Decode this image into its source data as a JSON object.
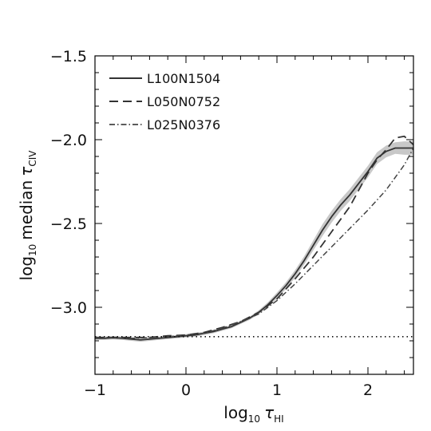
{
  "chart_data": {
    "type": "line",
    "xlabel": {
      "prefix": "log",
      "base": "10",
      "tau": "τ",
      "sub": "HI"
    },
    "ylabel": {
      "prefix": "log",
      "base": "10",
      "word": "median",
      "tau": "τ",
      "sub": "CIV"
    },
    "xlim": [
      -1,
      2.5
    ],
    "ylim": [
      -3.4,
      -1.5
    ],
    "xticks": [
      -1,
      0,
      1,
      2
    ],
    "xtick_labels": [
      "−1",
      "0",
      "1",
      "2"
    ],
    "yticks": [
      -3.0,
      -2.5,
      -2.0,
      -1.5
    ],
    "ytick_labels": [
      "−3.0",
      "−2.5",
      "−2.0",
      "−1.5"
    ],
    "grid": false,
    "legend_position": "top-left",
    "series": [
      {
        "name": "L100N1504",
        "style": "solid",
        "x": [
          -1.0,
          -0.9,
          -0.8,
          -0.7,
          -0.6,
          -0.5,
          -0.4,
          -0.3,
          -0.2,
          -0.1,
          0.0,
          0.1,
          0.2,
          0.3,
          0.4,
          0.5,
          0.6,
          0.7,
          0.8,
          0.9,
          1.0,
          1.1,
          1.2,
          1.3,
          1.4,
          1.5,
          1.6,
          1.7,
          1.8,
          1.9,
          2.0,
          2.1,
          2.2,
          2.3,
          2.4,
          2.5
        ],
        "y": [
          -3.185,
          -3.185,
          -3.182,
          -3.185,
          -3.19,
          -3.195,
          -3.19,
          -3.185,
          -3.18,
          -3.175,
          -3.17,
          -3.165,
          -3.155,
          -3.145,
          -3.13,
          -3.115,
          -3.09,
          -3.065,
          -3.03,
          -2.985,
          -2.93,
          -2.87,
          -2.8,
          -2.72,
          -2.63,
          -2.54,
          -2.46,
          -2.39,
          -2.33,
          -2.26,
          -2.19,
          -2.11,
          -2.07,
          -2.05,
          -2.05,
          -2.05
        ],
        "band_lower": [
          -3.195,
          -3.195,
          -3.192,
          -3.195,
          -3.2,
          -3.205,
          -3.2,
          -3.195,
          -3.19,
          -3.185,
          -3.18,
          -3.175,
          -3.165,
          -3.155,
          -3.14,
          -3.125,
          -3.1,
          -3.075,
          -3.042,
          -3.0,
          -2.948,
          -2.89,
          -2.823,
          -2.745,
          -2.66,
          -2.575,
          -2.495,
          -2.425,
          -2.365,
          -2.295,
          -2.225,
          -2.145,
          -2.105,
          -2.085,
          -2.09,
          -2.09
        ],
        "band_upper": [
          -3.175,
          -3.175,
          -3.172,
          -3.175,
          -3.18,
          -3.185,
          -3.18,
          -3.175,
          -3.17,
          -3.165,
          -3.16,
          -3.155,
          -3.145,
          -3.135,
          -3.12,
          -3.105,
          -3.08,
          -3.055,
          -3.018,
          -2.97,
          -2.912,
          -2.85,
          -2.777,
          -2.695,
          -2.6,
          -2.505,
          -2.425,
          -2.355,
          -2.295,
          -2.225,
          -2.155,
          -2.075,
          -2.035,
          -2.015,
          -2.01,
          -2.01
        ]
      },
      {
        "name": "L050N0752",
        "style": "dashed",
        "x": [
          -1.0,
          -0.8,
          -0.6,
          -0.4,
          -0.2,
          0.0,
          0.2,
          0.4,
          0.6,
          0.8,
          1.0,
          1.2,
          1.4,
          1.6,
          1.8,
          2.0,
          2.1,
          2.2,
          2.3,
          2.4,
          2.5
        ],
        "y": [
          -3.18,
          -3.18,
          -3.18,
          -3.18,
          -3.17,
          -3.165,
          -3.15,
          -3.12,
          -3.085,
          -3.03,
          -2.95,
          -2.83,
          -2.7,
          -2.55,
          -2.4,
          -2.2,
          -2.12,
          -2.06,
          -1.99,
          -1.98,
          -2.03
        ]
      },
      {
        "name": "L025N0376",
        "style": "dashdot",
        "x": [
          -1.0,
          -0.8,
          -0.6,
          -0.4,
          -0.2,
          0.0,
          0.2,
          0.4,
          0.6,
          0.8,
          1.0,
          1.2,
          1.4,
          1.6,
          1.8,
          2.0,
          2.2,
          2.4,
          2.5
        ],
        "y": [
          -3.18,
          -3.18,
          -3.185,
          -3.18,
          -3.175,
          -3.165,
          -3.155,
          -3.125,
          -3.085,
          -3.04,
          -2.96,
          -2.86,
          -2.75,
          -2.64,
          -2.53,
          -2.42,
          -2.3,
          -2.15,
          -2.05
        ]
      },
      {
        "style": "dotted",
        "x": [
          -1.0,
          2.5
        ],
        "y": [
          -3.175,
          -3.175
        ]
      }
    ]
  }
}
